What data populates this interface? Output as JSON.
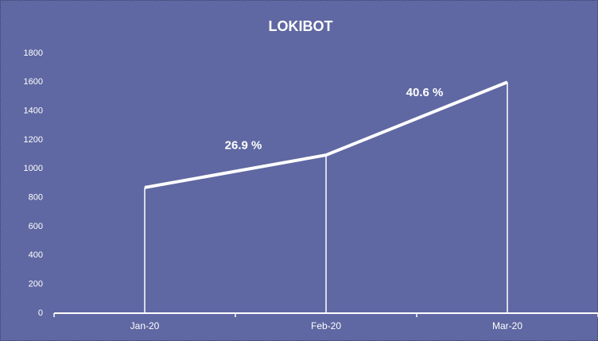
{
  "chart_data": {
    "type": "line",
    "title": "LOKIBOT",
    "categories": [
      "Jan-20",
      "Feb-20",
      "Mar-20"
    ],
    "values": [
      870,
      1095,
      1600
    ],
    "color": "#ffffff",
    "ylim": [
      0,
      1800
    ],
    "yticks": [
      0,
      200,
      400,
      600,
      800,
      1000,
      1200,
      1400,
      1600,
      1800
    ],
    "grid": false,
    "annotations": [
      "26.9  %",
      "40.6   %"
    ]
  }
}
